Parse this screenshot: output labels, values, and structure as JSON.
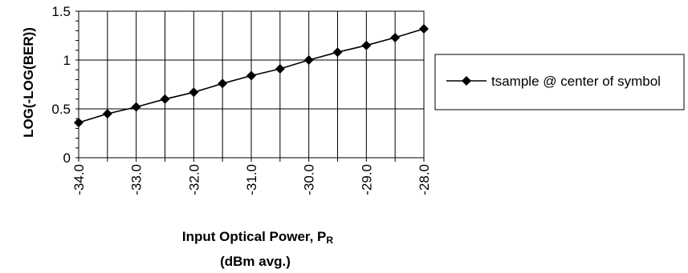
{
  "chart_data": {
    "type": "line",
    "xlabel_main": "Input Optical Power, P",
    "xlabel_subscript": "R",
    "xlabel_line2": "(dBm avg.)",
    "ylabel": "LOG(-LOG(BER))",
    "x": [
      -34.0,
      -33.5,
      -33.0,
      -32.5,
      -32.0,
      -31.5,
      -31.0,
      -30.5,
      -30.0,
      -29.5,
      -29.0,
      -28.5,
      -28.0
    ],
    "x_ticks": [
      -34.0,
      -33.0,
      -32.0,
      -31.0,
      -30.0,
      -29.0,
      -28.0
    ],
    "x_tick_labels": [
      "-34.0",
      "-33.0",
      "-32.0",
      "-31.0",
      "-30.0",
      "-29.0",
      "-28.0"
    ],
    "y_ticks": [
      0,
      0.5,
      1,
      1.5
    ],
    "y_tick_labels": [
      "0",
      "0.5",
      "1",
      "1.5"
    ],
    "xlim": [
      -34.0,
      -28.0
    ],
    "ylim": [
      0,
      1.5
    ],
    "grid": true,
    "legend_position": "right",
    "series": [
      {
        "name": "tsample @ center of symbol",
        "marker": "diamond",
        "color": "#000000",
        "values": [
          0.36,
          0.45,
          0.52,
          0.6,
          0.67,
          0.76,
          0.84,
          0.91,
          1.0,
          1.08,
          1.15,
          1.23,
          1.32
        ]
      }
    ]
  }
}
